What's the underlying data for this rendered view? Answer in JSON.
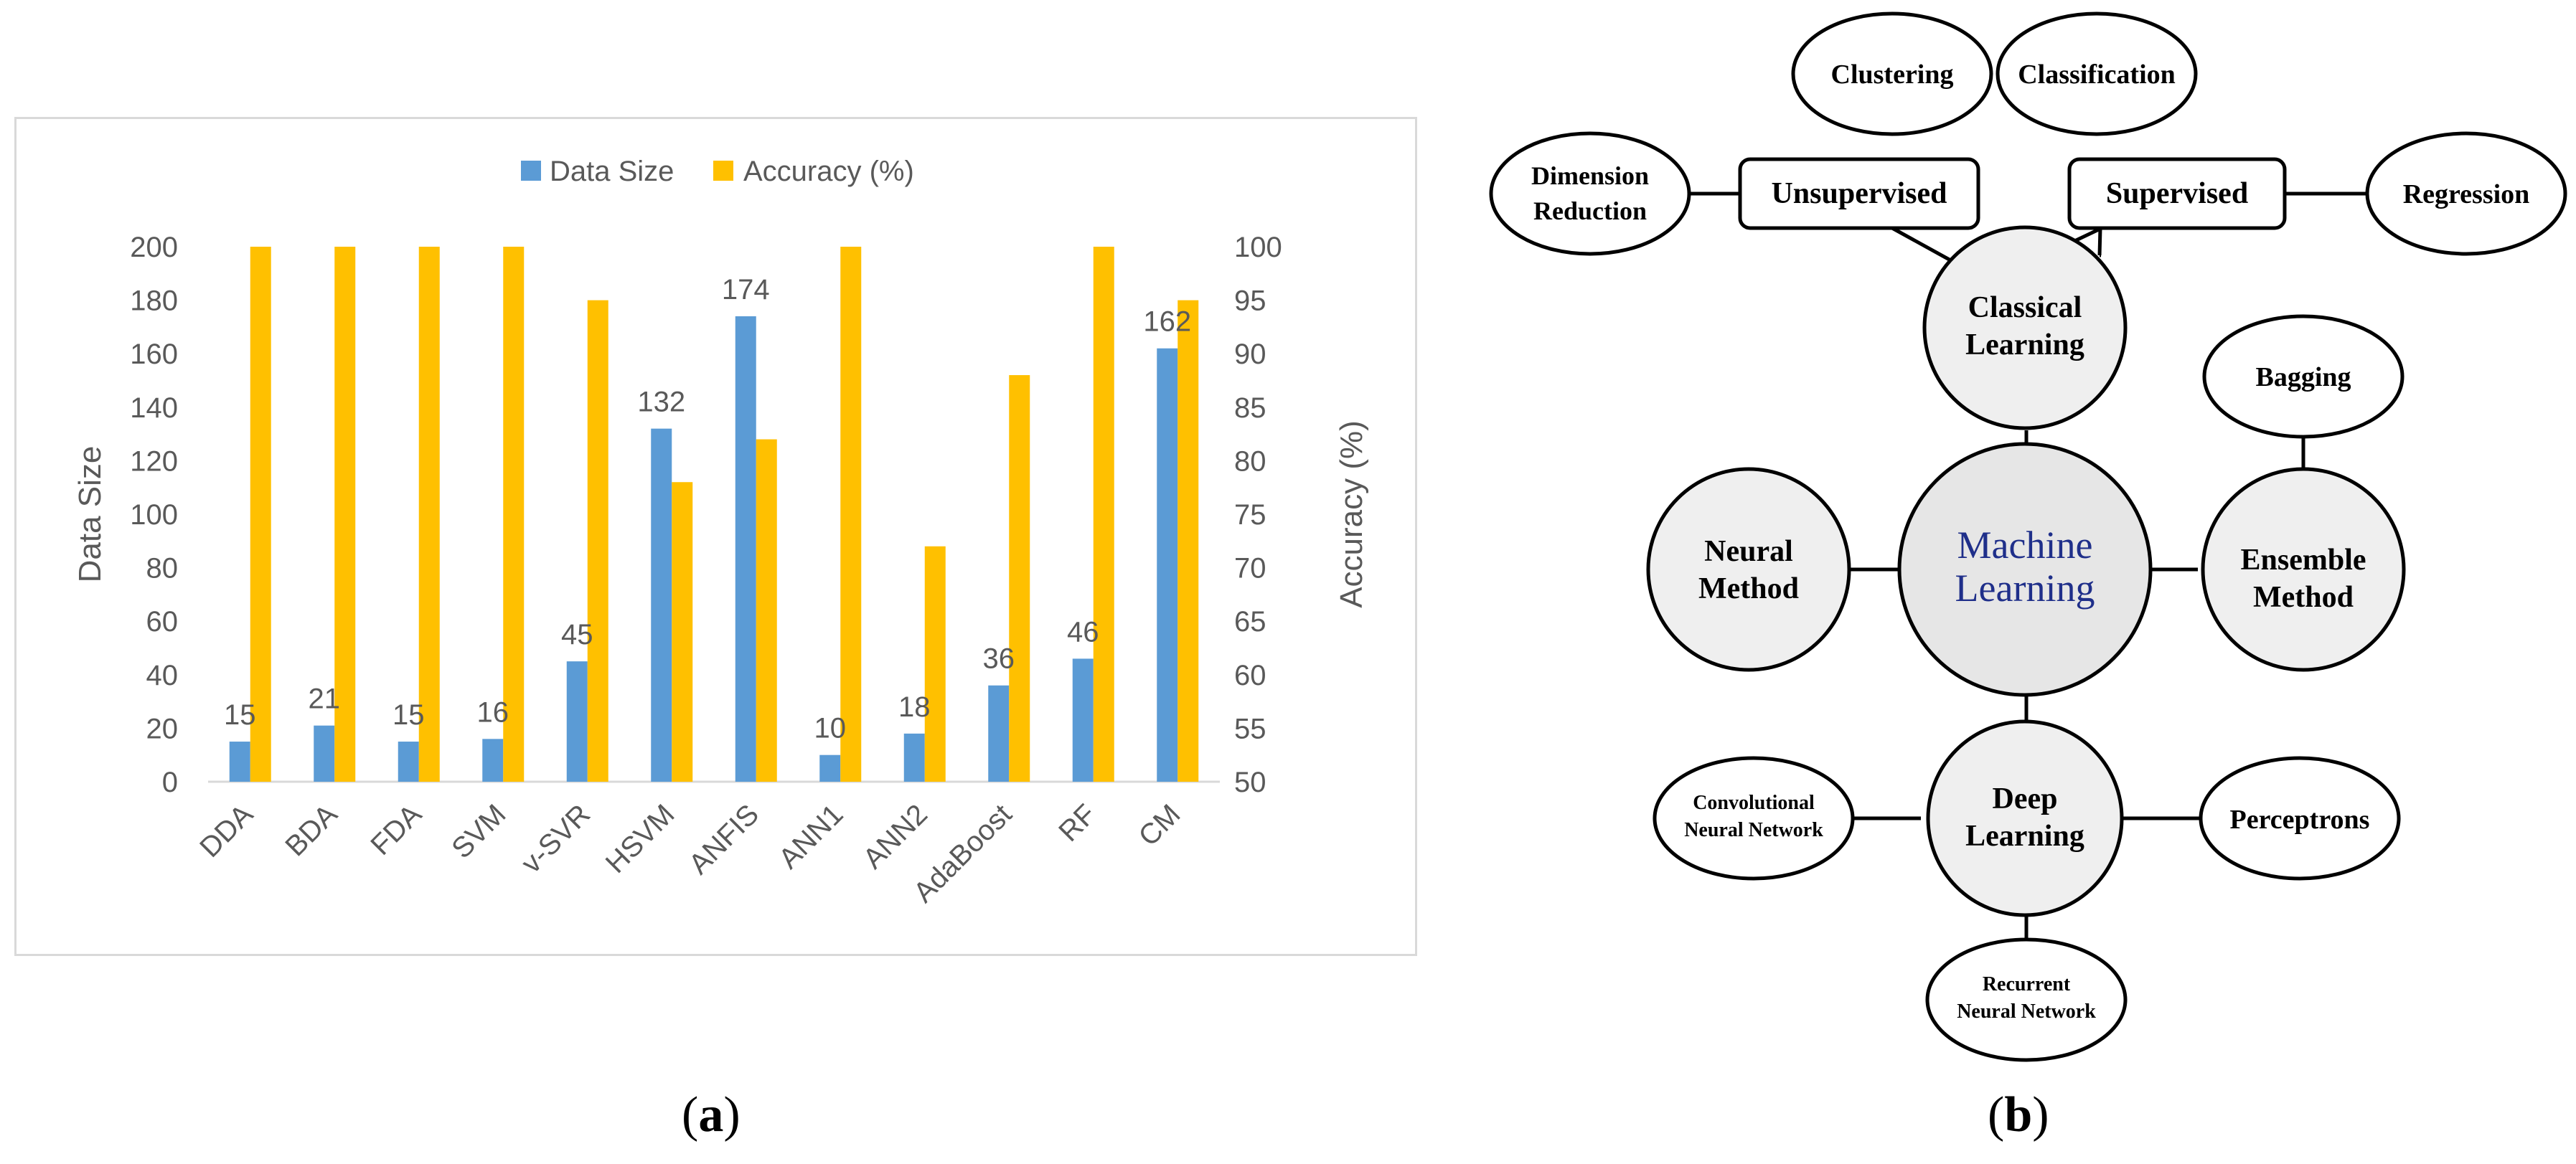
{
  "chart_data": {
    "type": "bar",
    "categories": [
      "DDA",
      "BDA",
      "FDA",
      "SVM",
      "v-SVR",
      "HSVM",
      "ANFIS",
      "ANN1",
      "ANN2",
      "AdaBoost",
      "RF",
      "CM"
    ],
    "series": [
      {
        "name": "Data Size",
        "axis": "left",
        "color": "#5b9bd5",
        "values": [
          15,
          21,
          15,
          16,
          45,
          132,
          174,
          10,
          18,
          36,
          46,
          162
        ]
      },
      {
        "name": "Accuracy (%)",
        "axis": "right",
        "color": "#ffc000",
        "values": [
          100,
          100,
          100,
          100,
          95,
          78,
          82,
          100,
          72,
          88,
          100,
          95
        ]
      }
    ],
    "data_labels": [
      "15",
      "21",
      "15",
      "16",
      "45",
      "132",
      "174",
      "10",
      "18",
      "36",
      "46",
      "162"
    ],
    "ylabel": "Data Size",
    "y2label": "Accuracy (%)",
    "ylim": [
      0,
      200
    ],
    "y2lim": [
      50,
      100
    ],
    "yticks": [
      "0",
      "20",
      "40",
      "60",
      "80",
      "100",
      "120",
      "140",
      "160",
      "180",
      "200"
    ],
    "y2ticks": [
      "50",
      "55",
      "60",
      "65",
      "70",
      "75",
      "80",
      "85",
      "90",
      "95",
      "100"
    ],
    "legend_position": "top-center",
    "grid": false
  },
  "diagram": {
    "center": "Machine Learning",
    "nodes": {
      "classical": [
        "Classical",
        "Learning"
      ],
      "neural": [
        "Neural",
        "Method"
      ],
      "ensemble": [
        "Ensemble",
        "Method"
      ],
      "deep": [
        "Deep",
        "Learning"
      ],
      "machine": [
        "Machine",
        "Learning"
      ],
      "unsupervised": "Unsupervised",
      "supervised": "Supervised",
      "clustering": "Clustering",
      "classification": "Classification",
      "dimension": [
        "Dimension",
        "Reduction"
      ],
      "regression": "Regression",
      "bagging": "Bagging",
      "perceptrons": "Perceptrons",
      "cnn": [
        "Convolutional",
        "Neural Network"
      ],
      "rnn": [
        "Recurrent",
        "Neural Network"
      ]
    },
    "colors": {
      "center_text": "#1f2f8a",
      "circle_fill": "#efefef"
    }
  },
  "captions": {
    "a": "a",
    "b": "b"
  }
}
